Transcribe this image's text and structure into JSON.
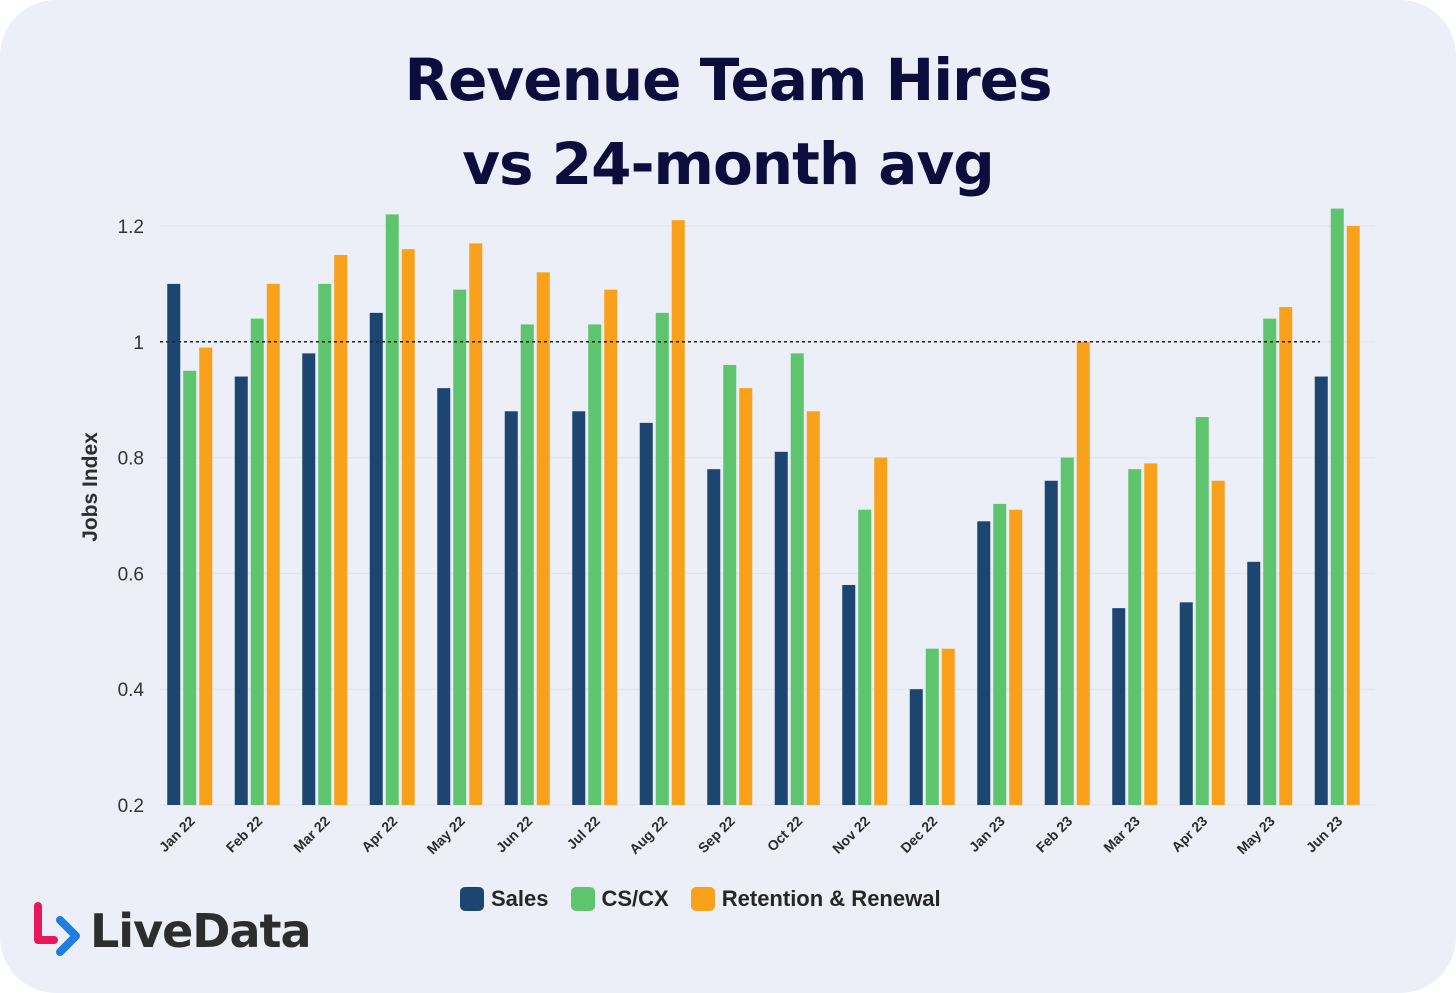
{
  "title_line1": "Revenue Team Hires",
  "title_line2": "vs 24-month avg",
  "brand": "LiveData",
  "colors": {
    "sales": "#1c4670",
    "cscx": "#5ec46e",
    "retention": "#f9a11b",
    "grid": "#e2e3ea",
    "reference_line": "#222222",
    "logo_pink": "#e8175d",
    "logo_blue": "#1f7ee0"
  },
  "chart_data": {
    "type": "bar",
    "ylabel": "Jobs Index",
    "ylim": [
      0.2,
      1.3
    ],
    "yticks": [
      "0.2",
      "0.4",
      "0.6",
      "0.8",
      "1",
      "1.2"
    ],
    "reference_line": 1,
    "legend_position": "bottom",
    "categories": [
      "Jan 22",
      "Feb 22",
      "Mar 22",
      "Apr 22",
      "May 22",
      "Jun 22",
      "Jul 22",
      "Aug 22",
      "Sep 22",
      "Oct 22",
      "Nov 22",
      "Dec 22",
      "Jan 23",
      "Feb 23",
      "Mar 23",
      "Apr 23",
      "May 23",
      "Jun 23"
    ],
    "series": [
      {
        "name": "Sales",
        "values": [
          1.1,
          0.94,
          0.98,
          1.05,
          0.92,
          0.88,
          0.88,
          0.86,
          0.78,
          0.81,
          0.58,
          0.4,
          0.69,
          0.76,
          0.54,
          0.55,
          0.62,
          0.94
        ]
      },
      {
        "name": "CS/CX",
        "values": [
          0.95,
          1.04,
          1.1,
          1.22,
          1.09,
          1.03,
          1.03,
          1.05,
          0.96,
          0.98,
          0.71,
          0.47,
          0.72,
          0.8,
          0.78,
          0.87,
          1.04,
          1.23
        ]
      },
      {
        "name": "Retention & Renewal",
        "values": [
          0.99,
          1.1,
          1.15,
          1.16,
          1.17,
          1.12,
          1.09,
          1.21,
          0.92,
          0.88,
          0.8,
          0.47,
          0.71,
          1.0,
          0.79,
          0.76,
          1.06,
          1.2
        ]
      }
    ]
  }
}
